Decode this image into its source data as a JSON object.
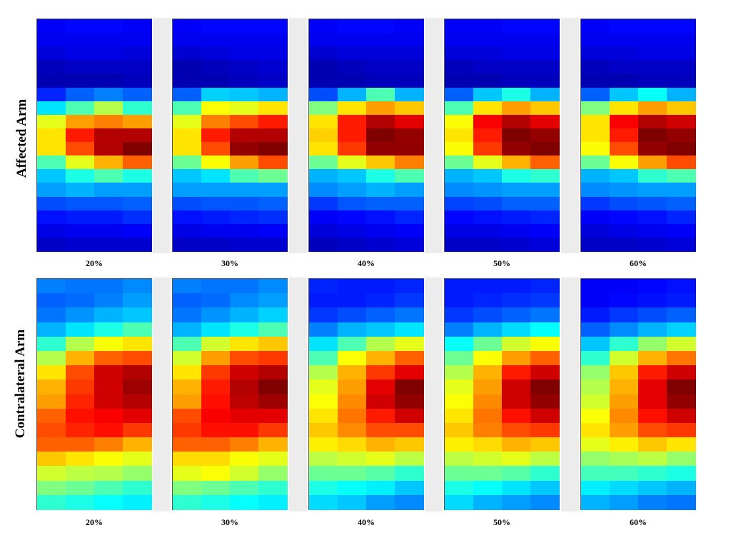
{
  "chart_data": [
    {
      "type": "heatmap",
      "row_label": "Affected Arm",
      "panels": [
        {
          "label": "20%",
          "grid": [
            [
              0.12,
              0.13,
              0.13,
              0.12
            ],
            [
              0.11,
              0.11,
              0.11,
              0.11
            ],
            [
              0.09,
              0.1,
              0.1,
              0.09
            ],
            [
              0.06,
              0.07,
              0.07,
              0.07
            ],
            [
              0.05,
              0.05,
              0.05,
              0.06
            ],
            [
              0.16,
              0.22,
              0.25,
              0.22
            ],
            [
              0.35,
              0.45,
              0.55,
              0.42
            ],
            [
              0.6,
              0.72,
              0.75,
              0.72
            ],
            [
              0.65,
              0.85,
              0.95,
              0.95
            ],
            [
              0.65,
              0.8,
              0.95,
              1.0
            ],
            [
              0.45,
              0.6,
              0.7,
              0.78
            ],
            [
              0.32,
              0.4,
              0.45,
              0.4
            ],
            [
              0.28,
              0.3,
              0.28,
              0.28
            ],
            [
              0.2,
              0.21,
              0.21,
              0.22
            ],
            [
              0.14,
              0.15,
              0.15,
              0.17
            ],
            [
              0.1,
              0.11,
              0.11,
              0.12
            ],
            [
              0.07,
              0.08,
              0.08,
              0.08
            ]
          ]
        },
        {
          "label": "30%",
          "grid": [
            [
              0.12,
              0.13,
              0.13,
              0.13
            ],
            [
              0.11,
              0.11,
              0.11,
              0.11
            ],
            [
              0.08,
              0.09,
              0.1,
              0.1
            ],
            [
              0.05,
              0.06,
              0.07,
              0.08
            ],
            [
              0.05,
              0.05,
              0.06,
              0.07
            ],
            [
              0.22,
              0.33,
              0.32,
              0.3
            ],
            [
              0.45,
              0.62,
              0.6,
              0.65
            ],
            [
              0.6,
              0.75,
              0.8,
              0.85
            ],
            [
              0.65,
              0.85,
              0.95,
              0.95
            ],
            [
              0.65,
              0.8,
              0.98,
              1.0
            ],
            [
              0.48,
              0.62,
              0.72,
              0.8
            ],
            [
              0.32,
              0.35,
              0.45,
              0.48
            ],
            [
              0.28,
              0.28,
              0.28,
              0.28
            ],
            [
              0.2,
              0.21,
              0.21,
              0.22
            ],
            [
              0.14,
              0.15,
              0.16,
              0.17
            ],
            [
              0.1,
              0.11,
              0.11,
              0.12
            ],
            [
              0.07,
              0.07,
              0.08,
              0.08
            ]
          ]
        },
        {
          "label": "40%",
          "grid": [
            [
              0.12,
              0.13,
              0.13,
              0.12
            ],
            [
              0.11,
              0.11,
              0.11,
              0.11
            ],
            [
              0.08,
              0.09,
              0.09,
              0.09
            ],
            [
              0.05,
              0.06,
              0.07,
              0.07
            ],
            [
              0.05,
              0.05,
              0.06,
              0.06
            ],
            [
              0.2,
              0.3,
              0.45,
              0.3
            ],
            [
              0.5,
              0.65,
              0.72,
              0.68
            ],
            [
              0.65,
              0.85,
              0.95,
              0.9
            ],
            [
              0.67,
              0.85,
              1.0,
              0.98
            ],
            [
              0.65,
              0.82,
              0.98,
              0.98
            ],
            [
              0.48,
              0.6,
              0.68,
              0.75
            ],
            [
              0.3,
              0.32,
              0.4,
              0.45
            ],
            [
              0.26,
              0.28,
              0.3,
              0.28
            ],
            [
              0.18,
              0.21,
              0.22,
              0.22
            ],
            [
              0.12,
              0.13,
              0.14,
              0.16
            ],
            [
              0.09,
              0.1,
              0.11,
              0.12
            ],
            [
              0.06,
              0.07,
              0.08,
              0.09
            ]
          ]
        },
        {
          "label": "50%",
          "grid": [
            [
              0.12,
              0.12,
              0.13,
              0.13
            ],
            [
              0.11,
              0.11,
              0.11,
              0.11
            ],
            [
              0.09,
              0.09,
              0.1,
              0.1
            ],
            [
              0.06,
              0.07,
              0.07,
              0.07
            ],
            [
              0.05,
              0.05,
              0.06,
              0.06
            ],
            [
              0.22,
              0.32,
              0.4,
              0.3
            ],
            [
              0.45,
              0.65,
              0.72,
              0.68
            ],
            [
              0.62,
              0.88,
              0.95,
              0.9
            ],
            [
              0.65,
              0.85,
              1.0,
              0.98
            ],
            [
              0.62,
              0.82,
              0.98,
              1.0
            ],
            [
              0.48,
              0.6,
              0.7,
              0.78
            ],
            [
              0.3,
              0.32,
              0.4,
              0.42
            ],
            [
              0.26,
              0.27,
              0.28,
              0.28
            ],
            [
              0.19,
              0.2,
              0.22,
              0.22
            ],
            [
              0.13,
              0.14,
              0.15,
              0.16
            ],
            [
              0.1,
              0.1,
              0.11,
              0.12
            ],
            [
              0.07,
              0.07,
              0.08,
              0.09
            ]
          ]
        },
        {
          "label": "60%",
          "grid": [
            [
              0.12,
              0.13,
              0.13,
              0.13
            ],
            [
              0.11,
              0.11,
              0.11,
              0.11
            ],
            [
              0.09,
              0.09,
              0.1,
              0.1
            ],
            [
              0.06,
              0.07,
              0.07,
              0.07
            ],
            [
              0.05,
              0.05,
              0.06,
              0.06
            ],
            [
              0.22,
              0.32,
              0.38,
              0.3
            ],
            [
              0.5,
              0.65,
              0.72,
              0.68
            ],
            [
              0.65,
              0.88,
              0.95,
              0.92
            ],
            [
              0.65,
              0.85,
              1.0,
              0.98
            ],
            [
              0.62,
              0.8,
              0.98,
              1.0
            ],
            [
              0.48,
              0.62,
              0.72,
              0.8
            ],
            [
              0.3,
              0.32,
              0.42,
              0.45
            ],
            [
              0.26,
              0.27,
              0.28,
              0.28
            ],
            [
              0.18,
              0.2,
              0.21,
              0.22
            ],
            [
              0.12,
              0.13,
              0.14,
              0.16
            ],
            [
              0.09,
              0.1,
              0.11,
              0.12
            ],
            [
              0.07,
              0.07,
              0.08,
              0.09
            ]
          ]
        }
      ]
    },
    {
      "type": "heatmap",
      "row_label": "Contralateral Arm",
      "panels": [
        {
          "label": "20%",
          "grid": [
            [
              0.25,
              0.24,
              0.24,
              0.26
            ],
            [
              0.22,
              0.23,
              0.25,
              0.28
            ],
            [
              0.24,
              0.27,
              0.3,
              0.32
            ],
            [
              0.3,
              0.35,
              0.4,
              0.45
            ],
            [
              0.42,
              0.55,
              0.62,
              0.65
            ],
            [
              0.55,
              0.7,
              0.78,
              0.8
            ],
            [
              0.65,
              0.8,
              0.92,
              0.95
            ],
            [
              0.7,
              0.82,
              0.92,
              0.97
            ],
            [
              0.72,
              0.84,
              0.92,
              0.95
            ],
            [
              0.78,
              0.86,
              0.88,
              0.9
            ],
            [
              0.8,
              0.84,
              0.86,
              0.82
            ],
            [
              0.78,
              0.78,
              0.75,
              0.7
            ],
            [
              0.68,
              0.65,
              0.62,
              0.6
            ],
            [
              0.58,
              0.56,
              0.55,
              0.52
            ],
            [
              0.5,
              0.48,
              0.45,
              0.42
            ],
            [
              0.42,
              0.4,
              0.38,
              0.36
            ]
          ]
        },
        {
          "label": "30%",
          "grid": [
            [
              0.25,
              0.24,
              0.24,
              0.26
            ],
            [
              0.22,
              0.23,
              0.26,
              0.28
            ],
            [
              0.24,
              0.27,
              0.3,
              0.33
            ],
            [
              0.3,
              0.35,
              0.4,
              0.45
            ],
            [
              0.45,
              0.58,
              0.65,
              0.68
            ],
            [
              0.58,
              0.72,
              0.8,
              0.82
            ],
            [
              0.65,
              0.82,
              0.92,
              0.95
            ],
            [
              0.7,
              0.85,
              0.95,
              1.0
            ],
            [
              0.72,
              0.86,
              0.94,
              0.97
            ],
            [
              0.8,
              0.88,
              0.9,
              0.9
            ],
            [
              0.82,
              0.86,
              0.86,
              0.82
            ],
            [
              0.78,
              0.78,
              0.75,
              0.7
            ],
            [
              0.66,
              0.66,
              0.62,
              0.6
            ],
            [
              0.6,
              0.62,
              0.58,
              0.52
            ],
            [
              0.5,
              0.48,
              0.45,
              0.42
            ],
            [
              0.42,
              0.4,
              0.38,
              0.36
            ]
          ]
        },
        {
          "label": "40%",
          "grid": [
            [
              0.16,
              0.15,
              0.15,
              0.16
            ],
            [
              0.15,
              0.15,
              0.16,
              0.18
            ],
            [
              0.18,
              0.2,
              0.22,
              0.24
            ],
            [
              0.25,
              0.3,
              0.32,
              0.35
            ],
            [
              0.35,
              0.45,
              0.55,
              0.6
            ],
            [
              0.45,
              0.62,
              0.7,
              0.78
            ],
            [
              0.55,
              0.7,
              0.82,
              0.9
            ],
            [
              0.6,
              0.72,
              0.9,
              1.0
            ],
            [
              0.62,
              0.74,
              0.92,
              0.98
            ],
            [
              0.65,
              0.76,
              0.85,
              0.92
            ],
            [
              0.68,
              0.74,
              0.8,
              0.8
            ],
            [
              0.64,
              0.66,
              0.7,
              0.68
            ],
            [
              0.56,
              0.58,
              0.6,
              0.56
            ],
            [
              0.48,
              0.48,
              0.46,
              0.42
            ],
            [
              0.4,
              0.38,
              0.36,
              0.32
            ],
            [
              0.34,
              0.32,
              0.28,
              0.26
            ]
          ]
        },
        {
          "label": "50%",
          "grid": [
            [
              0.15,
              0.15,
              0.15,
              0.16
            ],
            [
              0.15,
              0.16,
              0.17,
              0.18
            ],
            [
              0.18,
              0.2,
              0.22,
              0.24
            ],
            [
              0.25,
              0.3,
              0.34,
              0.38
            ],
            [
              0.38,
              0.48,
              0.58,
              0.62
            ],
            [
              0.48,
              0.62,
              0.72,
              0.78
            ],
            [
              0.55,
              0.7,
              0.85,
              0.92
            ],
            [
              0.6,
              0.72,
              0.92,
              1.0
            ],
            [
              0.62,
              0.74,
              0.92,
              0.98
            ],
            [
              0.65,
              0.76,
              0.86,
              0.92
            ],
            [
              0.68,
              0.75,
              0.8,
              0.82
            ],
            [
              0.64,
              0.66,
              0.7,
              0.68
            ],
            [
              0.56,
              0.58,
              0.6,
              0.56
            ],
            [
              0.48,
              0.48,
              0.46,
              0.42
            ],
            [
              0.4,
              0.38,
              0.35,
              0.32
            ],
            [
              0.34,
              0.3,
              0.28,
              0.26
            ]
          ]
        },
        {
          "label": "60%",
          "grid": [
            [
              0.12,
              0.12,
              0.13,
              0.14
            ],
            [
              0.12,
              0.13,
              0.14,
              0.15
            ],
            [
              0.15,
              0.18,
              0.2,
              0.22
            ],
            [
              0.22,
              0.26,
              0.3,
              0.33
            ],
            [
              0.32,
              0.42,
              0.52,
              0.58
            ],
            [
              0.42,
              0.58,
              0.7,
              0.76
            ],
            [
              0.52,
              0.68,
              0.85,
              0.92
            ],
            [
              0.55,
              0.7,
              0.9,
              1.0
            ],
            [
              0.58,
              0.72,
              0.9,
              0.98
            ],
            [
              0.62,
              0.74,
              0.86,
              0.92
            ],
            [
              0.65,
              0.72,
              0.8,
              0.82
            ],
            [
              0.6,
              0.64,
              0.68,
              0.65
            ],
            [
              0.52,
              0.54,
              0.56,
              0.52
            ],
            [
              0.44,
              0.44,
              0.42,
              0.4
            ],
            [
              0.36,
              0.34,
              0.32,
              0.3
            ],
            [
              0.3,
              0.28,
              0.25,
              0.24
            ]
          ]
        }
      ]
    }
  ]
}
